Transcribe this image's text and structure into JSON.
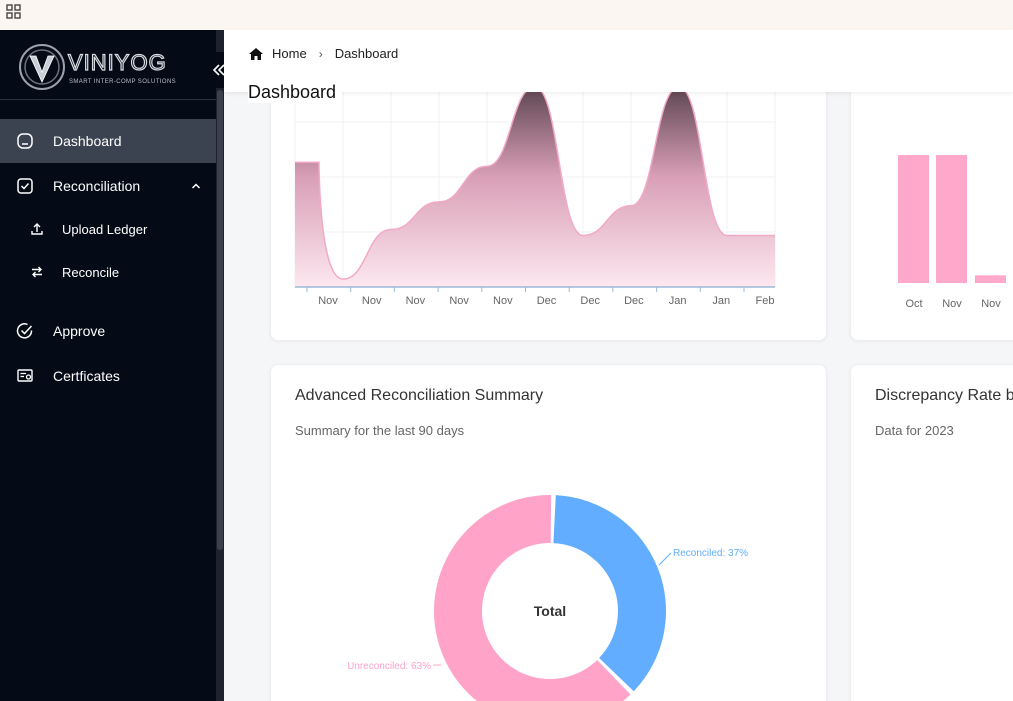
{
  "app": {
    "brand_name": "VINIYOG",
    "brand_tagline": "SMART INTER-COMP SOLUTIONS"
  },
  "sidebar": {
    "items": [
      {
        "label": "Dashboard",
        "icon": "dashboard-icon",
        "active": true
      },
      {
        "label": "Reconciliation",
        "icon": "check-square-icon",
        "expanded": true,
        "children": [
          {
            "label": "Upload Ledger",
            "icon": "upload-icon"
          },
          {
            "label": "Reconcile",
            "icon": "swap-icon"
          }
        ]
      },
      {
        "label": "Approve",
        "icon": "check-circle-icon"
      },
      {
        "label": "Certficates",
        "icon": "certificate-icon"
      }
    ]
  },
  "header": {
    "breadcrumb": [
      "Home",
      "Dashboard"
    ],
    "title": "Dashboard"
  },
  "cards": {
    "trend": {
      "x_labels": [
        "Nov",
        "Nov",
        "Nov",
        "Nov",
        "Nov",
        "Dec",
        "Dec",
        "Dec",
        "Jan",
        "Jan",
        "Feb"
      ]
    },
    "bars": {
      "x_labels": [
        "Oct",
        "Nov",
        "Nov"
      ]
    },
    "summary": {
      "title": "Advanced Reconciliation Summary",
      "subtitle": "Summary for the last 90 days",
      "center_label": "Total",
      "reconciled_label": "Reconciled: 37%",
      "unreconciled_label": "Unreconciled: 63%"
    },
    "discrepancy": {
      "title": "Discrepancy Rate b",
      "subtitle": "Data for 2023"
    }
  },
  "colors": {
    "sidebar_bg": "#040b16",
    "pink": "#ffa3c9",
    "blue": "#62adff",
    "dark_mauve": "#5e4651"
  },
  "chart_data": [
    {
      "type": "area",
      "categories": [
        "Nov",
        "Nov",
        "Nov",
        "Nov",
        "Nov",
        "Dec",
        "Dec",
        "Dec",
        "Jan",
        "Jan",
        "Feb"
      ],
      "series": [
        {
          "values": [
            0.62,
            0.03,
            0.28,
            0.42,
            0.6,
            1.0,
            0.25,
            0.4,
            1.0,
            0.25,
            0.25
          ]
        }
      ]
    },
    {
      "type": "bar",
      "categories": [
        "Oct",
        "Nov",
        "Nov"
      ],
      "series": [
        {
          "values": [
            1.0,
            1.0,
            0.06
          ]
        }
      ]
    },
    {
      "type": "pie",
      "title": "Total",
      "labels": [
        "Reconciled",
        "Unreconciled"
      ],
      "values": [
        37,
        63
      ]
    }
  ]
}
